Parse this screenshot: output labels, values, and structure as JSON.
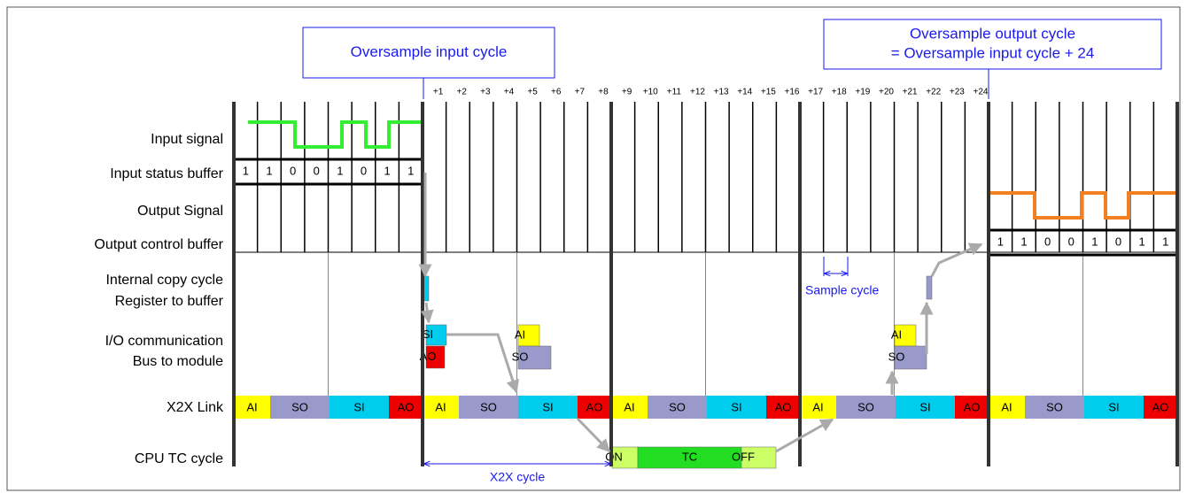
{
  "callouts": [
    {
      "lines": [
        "Oversample input cycle"
      ]
    },
    {
      "lines": [
        "Oversample output cycle",
        "= Oversample input cycle + 24"
      ]
    }
  ],
  "cycle_ticks": [
    "+1",
    "+2",
    "+3",
    "+4",
    "+5",
    "+6",
    "+7",
    "+8",
    "+9",
    "+10",
    "+11",
    "+12",
    "+13",
    "+14",
    "+15",
    "+16",
    "+17",
    "+18",
    "+19",
    "+20",
    "+21",
    "+22",
    "+23",
    "+24"
  ],
  "row_labels": [
    "Input signal",
    "Input status buffer",
    "Output Signal",
    "Output control buffer",
    "Internal copy cycle",
    "Register to buffer",
    "I/O communication",
    "Bus to module",
    "X2X Link",
    "CPU TC cycle"
  ],
  "input_status_buffer": [
    "1",
    "1",
    "0",
    "0",
    "1",
    "0",
    "1",
    "1"
  ],
  "output_control_buffer": [
    "1",
    "1",
    "0",
    "0",
    "1",
    "0",
    "1",
    "1"
  ],
  "x2x_link": [
    "AI",
    "SO",
    "SI",
    "AO",
    "AI",
    "SO",
    "SI",
    "AO",
    "AI",
    "SO",
    "SI",
    "AO",
    "AI",
    "SO",
    "SI",
    "AO",
    "AI",
    "SO",
    "SI",
    "AO"
  ],
  "io_communication": [
    "SI",
    "AO",
    "AI",
    "SO",
    "AI",
    "SO"
  ],
  "cpu_tc": [
    "ON",
    "TC",
    "OFF"
  ],
  "annotations": {
    "sample_cycle": "Sample cycle",
    "x2x_cycle": "X2X cycle"
  }
}
